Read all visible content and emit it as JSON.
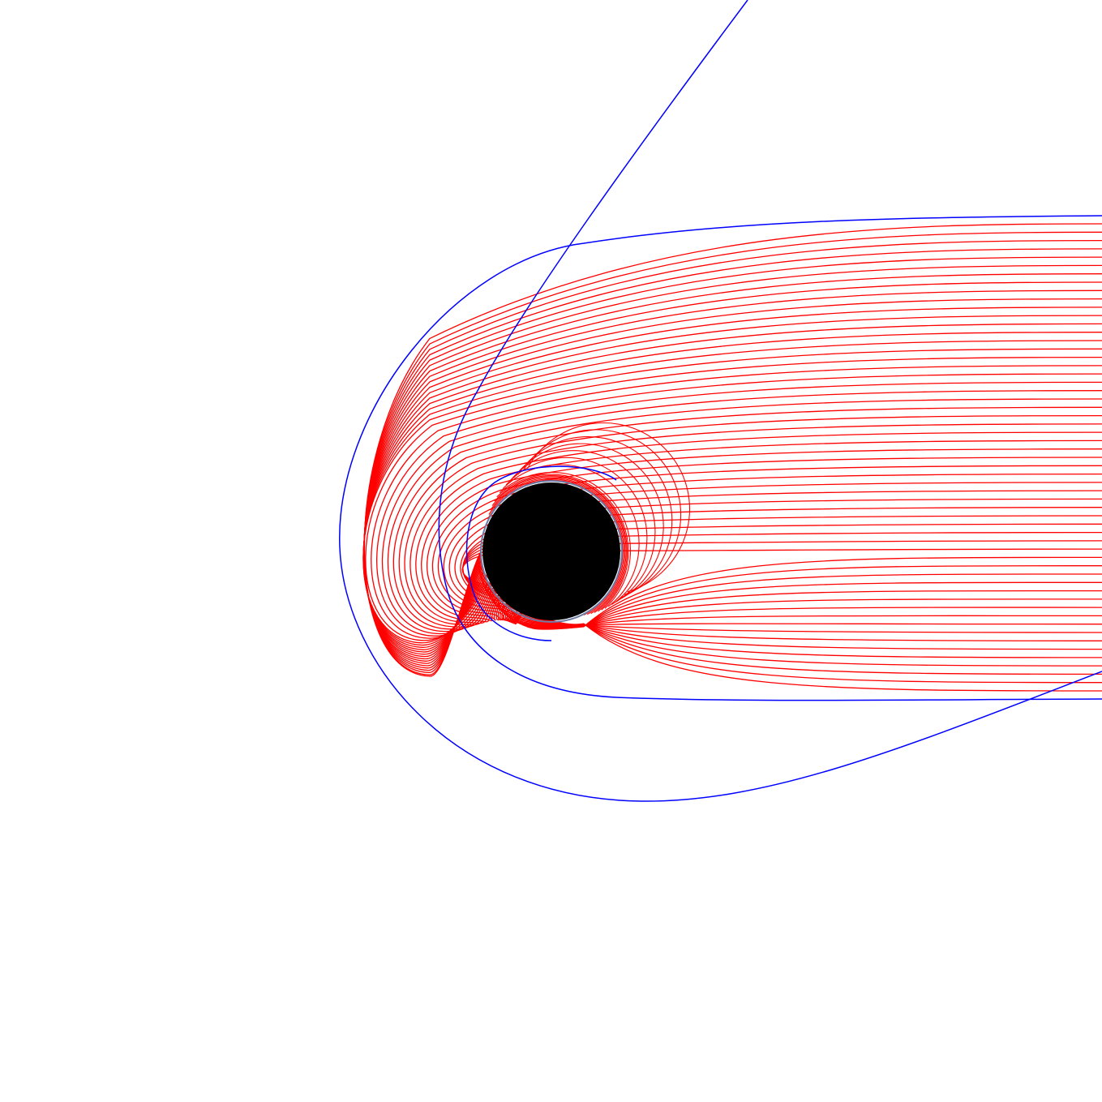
{
  "colors": {
    "background": "#ffffff",
    "captured_ray": "#ff0000",
    "boundary_ray": "#0000ff",
    "event_horizon_fill": "#000000",
    "photon_sphere_edge": "#6c7aa6"
  },
  "rays": {
    "captured_count": 57,
    "boundary_count": 3
  }
}
